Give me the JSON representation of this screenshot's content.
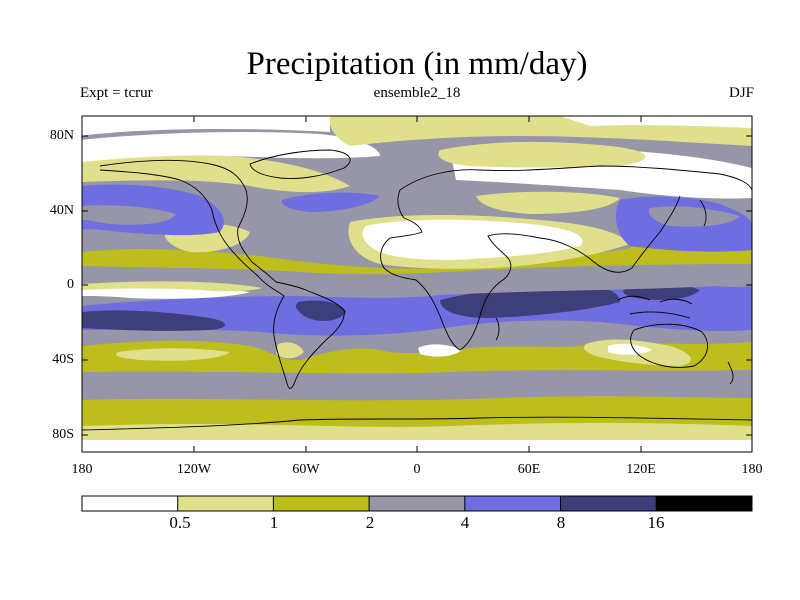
{
  "title": "Precipitation (in mm/day)",
  "experiment_label": "Expt = tcrur",
  "run_label": "ensemble2_18",
  "season_label": "DJF",
  "x_ticks": [
    "180",
    "120W",
    "60W",
    "0",
    "60E",
    "120E",
    "180"
  ],
  "y_ticks": [
    "80N",
    "40N",
    "0",
    "40S",
    "80S"
  ],
  "colorbar": {
    "colors": [
      "#ffffff",
      "#e0e08c",
      "#bdbd1e",
      "#9696a8",
      "#6e6ee0",
      "#3e3e7a",
      "#000000"
    ],
    "labels": [
      "0.5",
      "1",
      "2",
      "4",
      "8",
      "16"
    ]
  },
  "legend_colors": {
    "lt05": "#ffffff",
    "b05_1": "#e0e08c",
    "b1_2": "#bdbd1e",
    "b2_4": "#9696a8",
    "b4_8": "#6e6ee0",
    "b8_16": "#3e3e7a",
    "gt16": "#000000"
  }
}
